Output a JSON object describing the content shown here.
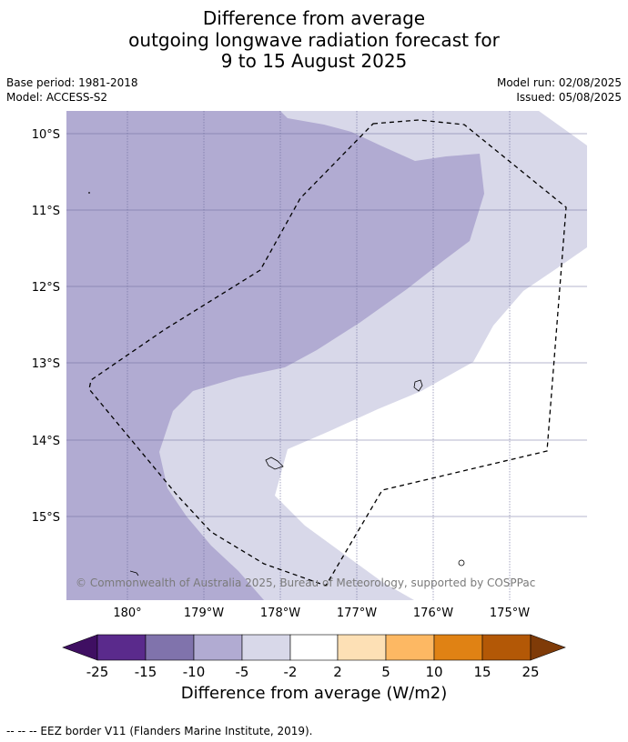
{
  "header": {
    "title_lines": [
      "Difference from average",
      "outgoing longwave radiation forecast for",
      "9 to 15 August 2025"
    ],
    "base_period": "Base period: 1981-2018",
    "model": "Model: ACCESS-S2",
    "model_run": "Model run: 02/08/2025",
    "issued": "Issued: 05/08/2025"
  },
  "map": {
    "lat_labels": [
      "10°S",
      "11°S",
      "12°S",
      "13°S",
      "14°S",
      "15°S"
    ],
    "lon_labels": [
      "180°",
      "179°W",
      "178°W",
      "177°W",
      "176°W",
      "175°W"
    ],
    "copyright": "© Commonwealth of Australia 2025, Bureau of Meteorology, supported by COSPPac",
    "colors": {
      "m10_to_m5": "#b1abd2",
      "m5_to_m2": "#d8d8e9",
      "m2_to_2": "#ffffff",
      "grid": "#6a6a9a",
      "eez": "#000000"
    }
  },
  "colorbar": {
    "tick_labels": [
      "-25",
      "-15",
      "-10",
      "-5",
      "-2",
      "2",
      "5",
      "10",
      "15",
      "25"
    ],
    "colors": [
      "#3f0f62",
      "#5a2a8c",
      "#8073ac",
      "#b1abd2",
      "#d8d8e9",
      "#ffffff",
      "#fde0b5",
      "#fdb863",
      "#e08214",
      "#b35806",
      "#7f3b08"
    ],
    "label": "Difference from average (W/m2)"
  },
  "footer": {
    "legend_text": "--  --  -- EEZ border V11 (Flanders Marine Institute, 2019)."
  }
}
